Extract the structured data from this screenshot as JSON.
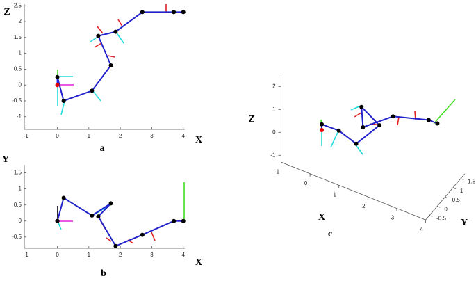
{
  "chart_data": [
    {
      "type": "line",
      "caption": "a",
      "xlabel": "X",
      "ylabel": "Z",
      "x": [
        0,
        0,
        0.2,
        1.1,
        1.7,
        1.3,
        1.85,
        2.7,
        3.7,
        4.0
      ],
      "values": [
        0,
        0.25,
        -0.5,
        -0.18,
        0.62,
        1.55,
        1.68,
        2.3,
        2.3,
        2.3
      ],
      "xlim": [
        -1.05,
        4.05
      ],
      "ylim": [
        -1.4,
        2.55
      ],
      "xticks": [
        -1,
        0,
        1,
        2,
        3,
        4
      ],
      "yticks": [
        -1,
        -0.5,
        0,
        0.5,
        1,
        1.5,
        2,
        2.5
      ],
      "color": "#2222cc",
      "marker_color": "#000000",
      "start_color": "#e00000"
    },
    {
      "type": "line",
      "caption": "b",
      "xlabel": "X",
      "ylabel": "Y",
      "x": [
        0,
        0,
        0.2,
        1.1,
        1.7,
        1.3,
        1.85,
        2.7,
        3.7,
        4.0
      ],
      "values": [
        0,
        0,
        0.72,
        0.17,
        0.55,
        0.14,
        -0.78,
        -0.43,
        0,
        0
      ],
      "xlim": [
        -1.05,
        4.05
      ],
      "ylim": [
        -0.85,
        1.75
      ],
      "xticks": [
        -1,
        0,
        1,
        2,
        3,
        4
      ],
      "yticks": [
        -0.5,
        0,
        0.5,
        1,
        1.5
      ],
      "color": "#2222cc",
      "marker_color": "#000000",
      "start_color": "#e00000"
    },
    {
      "type": "line3d",
      "caption": "c",
      "xlabel": "X",
      "ylabel": "Y",
      "zlabel": "Z",
      "x": [
        0,
        0,
        0.2,
        1.1,
        1.7,
        1.3,
        1.85,
        2.7,
        3.7,
        4.0
      ],
      "y": [
        0,
        0,
        0.72,
        0.17,
        0.55,
        0.14,
        -0.78,
        -0.43,
        0,
        0
      ],
      "z": [
        0,
        0.25,
        -0.5,
        -0.18,
        0.62,
        1.55,
        1.68,
        2.3,
        2.3,
        2.3
      ],
      "xlim": [
        -1,
        4
      ],
      "ylim": [
        -0.75,
        1.75
      ],
      "zlim": [
        -1.3,
        2.5
      ],
      "xticks": [
        -1,
        0,
        1,
        2,
        3,
        4
      ],
      "yticks": [
        -0.5,
        0,
        0.5,
        1,
        1.5
      ],
      "zticks": [
        -1,
        0,
        1,
        2
      ],
      "color": "#2222cc",
      "marker_color": "#000000",
      "start_color": "#e00000"
    }
  ]
}
